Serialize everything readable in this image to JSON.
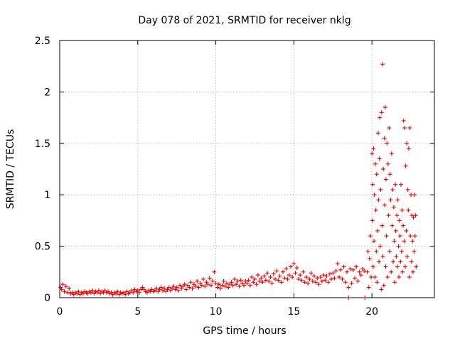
{
  "chart_data": {
    "type": "scatter",
    "title": "Day 078 of 2021, SRMTID for receiver nklg",
    "xlabel": "GPS time / hours",
    "ylabel": "SRMTID / TECUs",
    "xlim": [
      0,
      24
    ],
    "ylim": [
      0,
      2.5
    ],
    "xticks": [
      0,
      5,
      10,
      15,
      20
    ],
    "xtick_labels": [
      "0",
      "5",
      "10",
      "15",
      "20"
    ],
    "yticks": [
      0,
      0.5,
      1,
      1.5,
      2,
      2.5
    ],
    "ytick_labels": [
      "0",
      "0.5",
      "1",
      "1.5",
      "2",
      "2.5"
    ],
    "grid": true,
    "marker": "+",
    "color": "#e00000",
    "series": [
      {
        "name": "SRMTID",
        "points": [
          [
            0.05,
            0.1
          ],
          [
            0.12,
            0.08
          ],
          [
            0.2,
            0.13
          ],
          [
            0.3,
            0.06
          ],
          [
            0.4,
            0.11
          ],
          [
            0.5,
            0.05
          ],
          [
            0.6,
            0.09
          ],
          [
            0.7,
            0.04
          ],
          [
            0.8,
            0.05
          ],
          [
            0.9,
            0.03
          ],
          [
            1.0,
            0.05
          ],
          [
            1.1,
            0.04
          ],
          [
            1.2,
            0.06
          ],
          [
            1.3,
            0.03
          ],
          [
            1.4,
            0.05
          ],
          [
            1.5,
            0.04
          ],
          [
            1.6,
            0.06
          ],
          [
            1.7,
            0.05
          ],
          [
            1.8,
            0.04
          ],
          [
            1.9,
            0.06
          ],
          [
            2.0,
            0.05
          ],
          [
            2.1,
            0.07
          ],
          [
            2.2,
            0.04
          ],
          [
            2.3,
            0.06
          ],
          [
            2.4,
            0.05
          ],
          [
            2.5,
            0.07
          ],
          [
            2.6,
            0.04
          ],
          [
            2.7,
            0.06
          ],
          [
            2.8,
            0.05
          ],
          [
            2.9,
            0.07
          ],
          [
            3.0,
            0.05
          ],
          [
            3.1,
            0.06
          ],
          [
            3.2,
            0.04
          ],
          [
            3.3,
            0.05
          ],
          [
            3.4,
            0.03
          ],
          [
            3.5,
            0.05
          ],
          [
            3.6,
            0.04
          ],
          [
            3.7,
            0.06
          ],
          [
            3.8,
            0.03
          ],
          [
            3.9,
            0.05
          ],
          [
            4.0,
            0.04
          ],
          [
            4.1,
            0.05
          ],
          [
            4.2,
            0.03
          ],
          [
            4.3,
            0.06
          ],
          [
            4.4,
            0.04
          ],
          [
            4.5,
            0.05
          ],
          [
            4.6,
            0.07
          ],
          [
            4.7,
            0.05
          ],
          [
            4.8,
            0.08
          ],
          [
            4.9,
            0.06
          ],
          [
            5.0,
            0.07
          ],
          [
            5.1,
            0.05
          ],
          [
            5.2,
            0.08
          ],
          [
            5.3,
            0.1
          ],
          [
            5.4,
            0.08
          ],
          [
            5.5,
            0.06
          ],
          [
            5.6,
            0.05
          ],
          [
            5.7,
            0.07
          ],
          [
            5.8,
            0.06
          ],
          [
            5.9,
            0.08
          ],
          [
            6.0,
            0.06
          ],
          [
            6.1,
            0.07
          ],
          [
            6.2,
            0.09
          ],
          [
            6.3,
            0.06
          ],
          [
            6.4,
            0.08
          ],
          [
            6.5,
            0.1
          ],
          [
            6.6,
            0.07
          ],
          [
            6.7,
            0.09
          ],
          [
            6.8,
            0.06
          ],
          [
            6.9,
            0.08
          ],
          [
            7.0,
            0.1
          ],
          [
            7.1,
            0.07
          ],
          [
            7.2,
            0.09
          ],
          [
            7.3,
            0.11
          ],
          [
            7.4,
            0.08
          ],
          [
            7.5,
            0.1
          ],
          [
            7.6,
            0.07
          ],
          [
            7.7,
            0.12
          ],
          [
            7.8,
            0.09
          ],
          [
            7.9,
            0.11
          ],
          [
            8.0,
            0.13
          ],
          [
            8.1,
            0.08
          ],
          [
            8.2,
            0.12
          ],
          [
            8.3,
            0.1
          ],
          [
            8.4,
            0.15
          ],
          [
            8.5,
            0.09
          ],
          [
            8.6,
            0.13
          ],
          [
            8.7,
            0.11
          ],
          [
            8.8,
            0.16
          ],
          [
            8.9,
            0.1
          ],
          [
            9.0,
            0.14
          ],
          [
            9.1,
            0.12
          ],
          [
            9.2,
            0.18
          ],
          [
            9.3,
            0.11
          ],
          [
            9.4,
            0.15
          ],
          [
            9.5,
            0.13
          ],
          [
            9.6,
            0.19
          ],
          [
            9.7,
            0.12
          ],
          [
            9.8,
            0.16
          ],
          [
            9.9,
            0.25
          ],
          [
            10.0,
            0.14
          ],
          [
            10.1,
            0.1
          ],
          [
            10.2,
            0.13
          ],
          [
            10.3,
            0.09
          ],
          [
            10.4,
            0.12
          ],
          [
            10.5,
            0.16
          ],
          [
            10.6,
            0.11
          ],
          [
            10.7,
            0.14
          ],
          [
            10.8,
            0.1
          ],
          [
            10.9,
            0.13
          ],
          [
            11.0,
            0.15
          ],
          [
            11.1,
            0.12
          ],
          [
            11.2,
            0.18
          ],
          [
            11.3,
            0.13
          ],
          [
            11.4,
            0.16
          ],
          [
            11.5,
            0.11
          ],
          [
            11.6,
            0.17
          ],
          [
            11.7,
            0.14
          ],
          [
            11.8,
            0.12
          ],
          [
            11.9,
            0.16
          ],
          [
            12.0,
            0.14
          ],
          [
            12.1,
            0.17
          ],
          [
            12.2,
            0.12
          ],
          [
            12.3,
            0.2
          ],
          [
            12.4,
            0.15
          ],
          [
            12.5,
            0.18
          ],
          [
            12.6,
            0.13
          ],
          [
            12.7,
            0.22
          ],
          [
            12.8,
            0.16
          ],
          [
            12.9,
            0.19
          ],
          [
            13.0,
            0.15
          ],
          [
            13.1,
            0.21
          ],
          [
            13.2,
            0.17
          ],
          [
            13.3,
            0.24
          ],
          [
            13.4,
            0.16
          ],
          [
            13.5,
            0.2
          ],
          [
            13.6,
            0.14
          ],
          [
            13.7,
            0.23
          ],
          [
            13.8,
            0.18
          ],
          [
            13.9,
            0.26
          ],
          [
            14.0,
            0.17
          ],
          [
            14.1,
            0.21
          ],
          [
            14.2,
            0.15
          ],
          [
            14.3,
            0.25
          ],
          [
            14.4,
            0.19
          ],
          [
            14.5,
            0.28
          ],
          [
            14.6,
            0.18
          ],
          [
            14.7,
            0.22
          ],
          [
            14.8,
            0.3
          ],
          [
            14.9,
            0.2
          ],
          [
            15.0,
            0.33
          ],
          [
            15.1,
            0.24
          ],
          [
            15.2,
            0.29
          ],
          [
            15.3,
            0.18
          ],
          [
            15.4,
            0.22
          ],
          [
            15.5,
            0.17
          ],
          [
            15.6,
            0.25
          ],
          [
            15.7,
            0.15
          ],
          [
            15.8,
            0.2
          ],
          [
            15.9,
            0.14
          ],
          [
            16.0,
            0.18
          ],
          [
            16.1,
            0.24
          ],
          [
            16.2,
            0.16
          ],
          [
            16.3,
            0.21
          ],
          [
            16.4,
            0.15
          ],
          [
            16.5,
            0.19
          ],
          [
            16.6,
            0.13
          ],
          [
            16.7,
            0.2
          ],
          [
            16.8,
            0.16
          ],
          [
            16.9,
            0.22
          ],
          [
            17.0,
            0.17
          ],
          [
            17.1,
            0.21
          ],
          [
            17.2,
            0.15
          ],
          [
            17.3,
            0.23
          ],
          [
            17.4,
            0.18
          ],
          [
            17.5,
            0.24
          ],
          [
            17.6,
            0.19
          ],
          [
            17.7,
            0.26
          ],
          [
            17.8,
            0.33
          ],
          [
            17.9,
            0.2
          ],
          [
            18.0,
            0.27
          ],
          [
            18.1,
            0.18
          ],
          [
            18.2,
            0.3
          ],
          [
            18.3,
            0.15
          ],
          [
            18.4,
            0.25
          ],
          [
            18.5,
            0.1
          ],
          [
            18.6,
            0.28
          ],
          [
            18.7,
            0.14
          ],
          [
            18.8,
            0.27
          ],
          [
            18.9,
            0.19
          ],
          [
            19.0,
            0.3
          ],
          [
            19.1,
            0.16
          ],
          [
            19.2,
            0.25
          ],
          [
            19.3,
            0.22
          ],
          [
            19.4,
            0.28
          ],
          [
            19.5,
            0.26
          ],
          [
            18.5,
            0.0
          ],
          [
            19.55,
            0.0
          ],
          [
            19.7,
            0.25
          ],
          [
            19.75,
            0.45
          ],
          [
            19.8,
            0.1
          ],
          [
            19.85,
            0.38
          ],
          [
            19.9,
            0.6
          ],
          [
            19.95,
            0.2
          ],
          [
            20.0,
            1.4
          ],
          [
            20.02,
            0.75
          ],
          [
            20.05,
            1.1
          ],
          [
            20.08,
            0.3
          ],
          [
            20.1,
            1.45
          ],
          [
            20.13,
            0.55
          ],
          [
            20.16,
            1.0
          ],
          [
            20.2,
            0.2
          ],
          [
            20.22,
            1.3
          ],
          [
            20.25,
            0.85
          ],
          [
            20.28,
            0.45
          ],
          [
            20.3,
            1.2
          ],
          [
            20.33,
            0.15
          ],
          [
            20.36,
            0.65
          ],
          [
            20.4,
            1.6
          ],
          [
            20.42,
            0.95
          ],
          [
            20.45,
            0.35
          ],
          [
            20.48,
            1.35
          ],
          [
            20.5,
            1.75
          ],
          [
            20.53,
            0.5
          ],
          [
            20.56,
            1.05
          ],
          [
            20.6,
            0.08
          ],
          [
            20.62,
            1.8
          ],
          [
            20.65,
            0.7
          ],
          [
            20.68,
            2.27
          ],
          [
            20.7,
            0.4
          ],
          [
            20.73,
            1.25
          ],
          [
            20.76,
            0.12
          ],
          [
            20.8,
            1.55
          ],
          [
            20.82,
            0.9
          ],
          [
            20.85,
            1.85
          ],
          [
            20.88,
            0.3
          ],
          [
            20.9,
            1.15
          ],
          [
            20.93,
            0.6
          ],
          [
            20.96,
            1.5
          ],
          [
            21.0,
            0.2
          ],
          [
            21.03,
            1.3
          ],
          [
            21.06,
            0.8
          ],
          [
            21.1,
            1.65
          ],
          [
            21.13,
            0.45
          ],
          [
            21.16,
            1.2
          ],
          [
            21.2,
            0.95
          ],
          [
            21.23,
            0.25
          ],
          [
            21.26,
            1.4
          ],
          [
            21.3,
            0.7
          ],
          [
            21.33,
            1.05
          ],
          [
            21.36,
            0.35
          ],
          [
            21.4,
            0.88
          ],
          [
            21.43,
            0.55
          ],
          [
            21.46,
            0.15
          ],
          [
            21.5,
            1.1
          ],
          [
            21.53,
            0.65
          ],
          [
            21.56,
            0.4
          ],
          [
            21.6,
            0.8
          ],
          [
            21.63,
            0.3
          ],
          [
            21.66,
            0.95
          ],
          [
            21.7,
            0.5
          ],
          [
            21.73,
            0.2
          ],
          [
            21.76,
            0.75
          ],
          [
            21.8,
            0.6
          ],
          [
            21.83,
            0.35
          ],
          [
            21.86,
            1.1
          ],
          [
            21.9,
            0.45
          ],
          [
            21.93,
            0.85
          ],
          [
            21.96,
            0.25
          ],
          [
            22.0,
            0.7
          ],
          [
            22.03,
            1.72
          ],
          [
            22.06,
            0.55
          ],
          [
            22.1,
            1.65
          ],
          [
            22.13,
            0.3
          ],
          [
            22.16,
            1.28
          ],
          [
            22.2,
            0.65
          ],
          [
            22.23,
            1.5
          ],
          [
            22.26,
            0.4
          ],
          [
            22.3,
            1.05
          ],
          [
            22.33,
            0.85
          ],
          [
            22.36,
            1.45
          ],
          [
            22.4,
            0.2
          ],
          [
            22.43,
            1.65
          ],
          [
            22.46,
            0.6
          ],
          [
            22.5,
            1.0
          ],
          [
            22.53,
            0.35
          ],
          [
            22.56,
            0.8
          ],
          [
            22.6,
            0.55
          ],
          [
            22.63,
            0.25
          ],
          [
            22.66,
            0.78
          ],
          [
            22.7,
            0.45
          ],
          [
            22.73,
            1.0
          ],
          [
            22.76,
            0.6
          ],
          [
            22.8,
            0.8
          ],
          [
            22.83,
            0.3
          ]
        ]
      }
    ]
  }
}
